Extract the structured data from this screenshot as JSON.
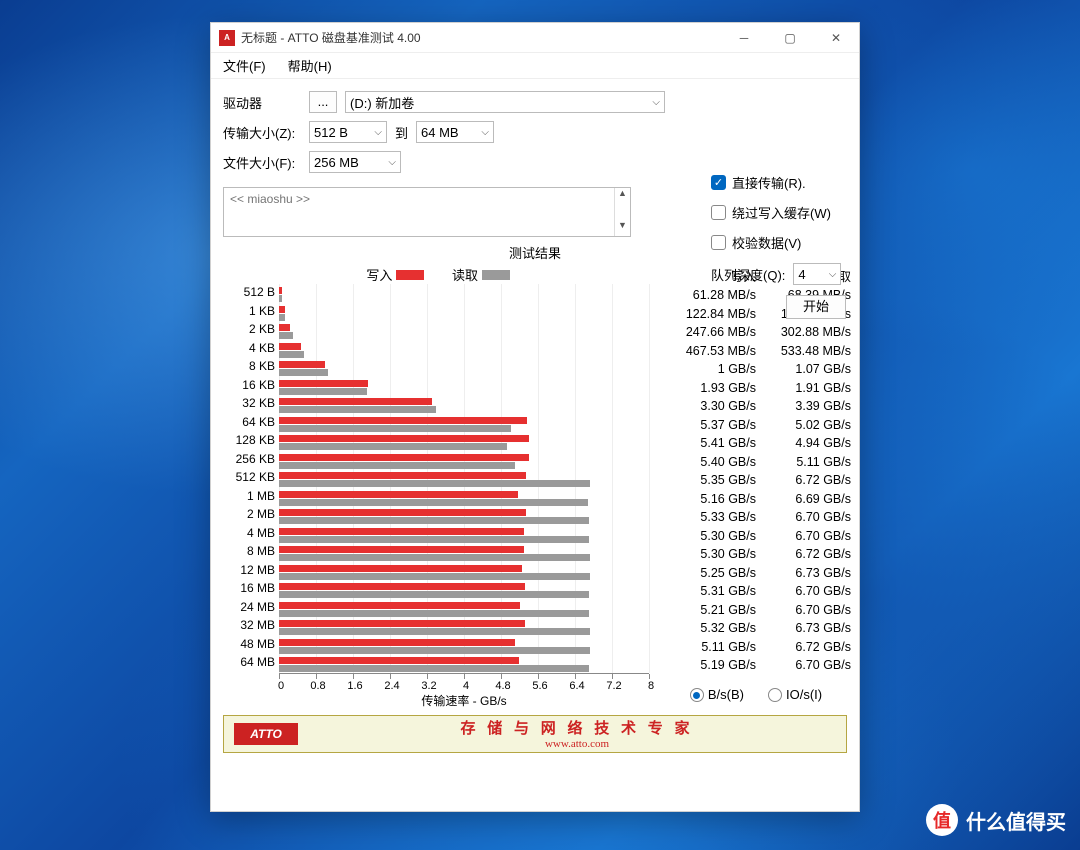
{
  "window": {
    "title": "无标题 - ATTO 磁盘基准测试 4.00",
    "app_icon_text": "A"
  },
  "menu": {
    "file": "文件(F)",
    "help": "帮助(H)"
  },
  "form": {
    "drive_label": "驱动器",
    "browse_label": "...",
    "drive_value": "(D:) 新加卷",
    "transfer_label": "传输大小(Z):",
    "transfer_from": "512 B",
    "to_label": "到",
    "transfer_to": "64 MB",
    "file_label": "文件大小(F):",
    "file_value": "256 MB"
  },
  "options": {
    "direct": {
      "label": "直接传输(R).",
      "checked": true
    },
    "bypass": {
      "label": "绕过写入缓存(W)",
      "checked": false
    },
    "verify": {
      "label": "校验数据(V)",
      "checked": false
    },
    "queue_label": "队列深度(Q):",
    "queue_value": "4",
    "start_label": "开始"
  },
  "description_placeholder": "<< miaoshu >>",
  "results": {
    "title": "测试结果",
    "legend_write": "写入",
    "legend_read": "读取",
    "header_write": "写入",
    "header_read": "读取",
    "x_axis_label": "传输速率 - GB/s",
    "x_ticks": [
      "0",
      "0.8",
      "1.6",
      "2.4",
      "3.2",
      "4",
      "4.8",
      "5.6",
      "6.4",
      "7.2",
      "8"
    ],
    "x_max": 8,
    "colors": {
      "write": "#e63030",
      "read": "#9a9a9a",
      "bg": "#ffffff"
    },
    "rows": [
      {
        "label": "512 B",
        "write_text": "61.28 MB/s",
        "read_text": "68.39 MB/s",
        "write_gbs": 0.061,
        "read_gbs": 0.068
      },
      {
        "label": "1 KB",
        "write_text": "122.84 MB/s",
        "read_text": "136.06 MB/s",
        "write_gbs": 0.123,
        "read_gbs": 0.136
      },
      {
        "label": "2 KB",
        "write_text": "247.66 MB/s",
        "read_text": "302.88 MB/s",
        "write_gbs": 0.248,
        "read_gbs": 0.303
      },
      {
        "label": "4 KB",
        "write_text": "467.53 MB/s",
        "read_text": "533.48 MB/s",
        "write_gbs": 0.468,
        "read_gbs": 0.533
      },
      {
        "label": "8 KB",
        "write_text": "1 GB/s",
        "read_text": "1.07 GB/s",
        "write_gbs": 1.0,
        "read_gbs": 1.07
      },
      {
        "label": "16 KB",
        "write_text": "1.93 GB/s",
        "read_text": "1.91 GB/s",
        "write_gbs": 1.93,
        "read_gbs": 1.91
      },
      {
        "label": "32 KB",
        "write_text": "3.30 GB/s",
        "read_text": "3.39 GB/s",
        "write_gbs": 3.3,
        "read_gbs": 3.39
      },
      {
        "label": "64 KB",
        "write_text": "5.37 GB/s",
        "read_text": "5.02 GB/s",
        "write_gbs": 5.37,
        "read_gbs": 5.02
      },
      {
        "label": "128 KB",
        "write_text": "5.41 GB/s",
        "read_text": "4.94 GB/s",
        "write_gbs": 5.41,
        "read_gbs": 4.94
      },
      {
        "label": "256 KB",
        "write_text": "5.40 GB/s",
        "read_text": "5.11 GB/s",
        "write_gbs": 5.4,
        "read_gbs": 5.11
      },
      {
        "label": "512 KB",
        "write_text": "5.35 GB/s",
        "read_text": "6.72 GB/s",
        "write_gbs": 5.35,
        "read_gbs": 6.72
      },
      {
        "label": "1 MB",
        "write_text": "5.16 GB/s",
        "read_text": "6.69 GB/s",
        "write_gbs": 5.16,
        "read_gbs": 6.69
      },
      {
        "label": "2 MB",
        "write_text": "5.33 GB/s",
        "read_text": "6.70 GB/s",
        "write_gbs": 5.33,
        "read_gbs": 6.7
      },
      {
        "label": "4 MB",
        "write_text": "5.30 GB/s",
        "read_text": "6.70 GB/s",
        "write_gbs": 5.3,
        "read_gbs": 6.7
      },
      {
        "label": "8 MB",
        "write_text": "5.30 GB/s",
        "read_text": "6.72 GB/s",
        "write_gbs": 5.3,
        "read_gbs": 6.72
      },
      {
        "label": "12 MB",
        "write_text": "5.25 GB/s",
        "read_text": "6.73 GB/s",
        "write_gbs": 5.25,
        "read_gbs": 6.73
      },
      {
        "label": "16 MB",
        "write_text": "5.31 GB/s",
        "read_text": "6.70 GB/s",
        "write_gbs": 5.31,
        "read_gbs": 6.7
      },
      {
        "label": "24 MB",
        "write_text": "5.21 GB/s",
        "read_text": "6.70 GB/s",
        "write_gbs": 5.21,
        "read_gbs": 6.7
      },
      {
        "label": "32 MB",
        "write_text": "5.32 GB/s",
        "read_text": "6.73 GB/s",
        "write_gbs": 5.32,
        "read_gbs": 6.73
      },
      {
        "label": "48 MB",
        "write_text": "5.11 GB/s",
        "read_text": "6.72 GB/s",
        "write_gbs": 5.11,
        "read_gbs": 6.72
      },
      {
        "label": "64 MB",
        "write_text": "5.19 GB/s",
        "read_text": "6.70 GB/s",
        "write_gbs": 5.19,
        "read_gbs": 6.7
      }
    ],
    "radio_bs": "B/s(B)",
    "radio_ios": "IO/s(I)"
  },
  "footer": {
    "logo": "ATTO",
    "line1": "存 储 与 网 络 技 术 专 家",
    "line2": "www.atto.com"
  },
  "watermark": {
    "char": "值",
    "text": "什么值得买"
  }
}
